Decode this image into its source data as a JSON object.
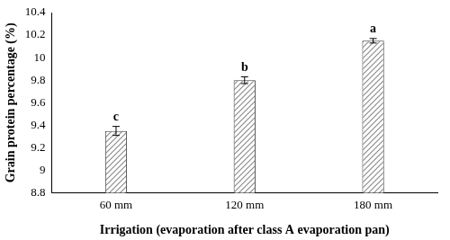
{
  "chart_data": {
    "type": "bar",
    "categories": [
      "60 mm",
      "120 mm",
      "180 mm"
    ],
    "values": [
      9.35,
      9.8,
      10.15
    ],
    "errors": [
      0.04,
      0.03,
      0.02
    ],
    "group_labels": [
      "c",
      "b",
      "a"
    ],
    "color": "#8c8c8c",
    "x_label": "Irrigation (evaporation after class A evaporation pan)",
    "y_label": "Grain protein percentage (%)",
    "ylim": [
      8.8,
      10.4
    ],
    "yticks": [
      8.8,
      9,
      9.2,
      9.4,
      9.6,
      9.8,
      10,
      10.2,
      10.4
    ],
    "grid": false
  }
}
